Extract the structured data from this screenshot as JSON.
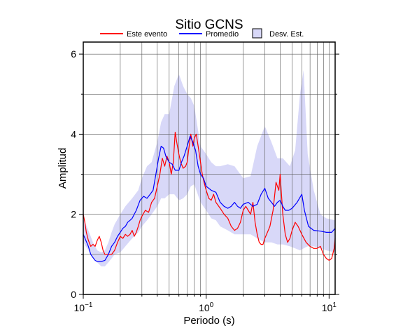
{
  "chart_data": {
    "type": "line",
    "title": "Sitio GCNS",
    "xlabel": "Periodo (s)",
    "ylabel": "Amplitud",
    "xscale": "log",
    "xlim": [
      0.1,
      11.2
    ],
    "ylim": [
      0,
      6.3
    ],
    "grid": true,
    "legend_position": "top",
    "x_tick_labels": [
      {
        "value": 0.1,
        "base": "10",
        "exp": "−1"
      },
      {
        "value": 1,
        "base": "10",
        "exp": "0"
      },
      {
        "value": 10,
        "base": "10",
        "exp": "1"
      }
    ],
    "y_tick_labels": [
      {
        "value": 0,
        "label": "0"
      },
      {
        "value": 2,
        "label": "2"
      },
      {
        "value": 4,
        "label": "4"
      },
      {
        "value": 6,
        "label": "6"
      }
    ],
    "y_minor_ticks": [
      1,
      3,
      5
    ],
    "legend": [
      {
        "name": "Este evento",
        "kind": "line",
        "color": "#ff0000"
      },
      {
        "name": "Promedio",
        "kind": "line",
        "color": "#0000ff"
      },
      {
        "name": "Desv. Est.",
        "kind": "box",
        "color": "#d8d8f8"
      }
    ],
    "series": [
      {
        "name": "Este evento",
        "color": "#ff0000",
        "points": [
          [
            0.1,
            2.0
          ],
          [
            0.103,
            1.8
          ],
          [
            0.106,
            1.55
          ],
          [
            0.11,
            1.35
          ],
          [
            0.115,
            1.2
          ],
          [
            0.12,
            1.25
          ],
          [
            0.125,
            1.2
          ],
          [
            0.13,
            1.35
          ],
          [
            0.135,
            1.45
          ],
          [
            0.14,
            1.3
          ],
          [
            0.145,
            1.1
          ],
          [
            0.15,
            1.0
          ],
          [
            0.16,
            1.0
          ],
          [
            0.17,
            1.0
          ],
          [
            0.18,
            1.1
          ],
          [
            0.19,
            1.3
          ],
          [
            0.2,
            1.45
          ],
          [
            0.21,
            1.4
          ],
          [
            0.22,
            1.5
          ],
          [
            0.23,
            1.45
          ],
          [
            0.24,
            1.5
          ],
          [
            0.25,
            1.6
          ],
          [
            0.26,
            1.45
          ],
          [
            0.27,
            1.55
          ],
          [
            0.28,
            1.7
          ],
          [
            0.29,
            1.85
          ],
          [
            0.3,
            1.95
          ],
          [
            0.32,
            2.1
          ],
          [
            0.34,
            2.05
          ],
          [
            0.36,
            2.3
          ],
          [
            0.38,
            2.4
          ],
          [
            0.4,
            2.7
          ],
          [
            0.42,
            3.0
          ],
          [
            0.44,
            3.4
          ],
          [
            0.46,
            3.2
          ],
          [
            0.48,
            3.45
          ],
          [
            0.5,
            3.3
          ],
          [
            0.52,
            3.0
          ],
          [
            0.54,
            3.3
          ],
          [
            0.56,
            4.05
          ],
          [
            0.58,
            3.75
          ],
          [
            0.6,
            3.5
          ],
          [
            0.62,
            3.3
          ],
          [
            0.65,
            3.15
          ],
          [
            0.68,
            3.2
          ],
          [
            0.7,
            3.3
          ],
          [
            0.72,
            3.6
          ],
          [
            0.75,
            4.0
          ],
          [
            0.78,
            3.7
          ],
          [
            0.8,
            3.9
          ],
          [
            0.83,
            4.0
          ],
          [
            0.86,
            3.7
          ],
          [
            0.9,
            3.3
          ],
          [
            0.93,
            3.0
          ],
          [
            0.96,
            2.8
          ],
          [
            1.0,
            2.6
          ],
          [
            1.05,
            2.4
          ],
          [
            1.1,
            2.35
          ],
          [
            1.15,
            2.5
          ],
          [
            1.2,
            2.3
          ],
          [
            1.3,
            2.15
          ],
          [
            1.4,
            2.0
          ],
          [
            1.5,
            1.9
          ],
          [
            1.6,
            1.7
          ],
          [
            1.7,
            1.6
          ],
          [
            1.8,
            1.65
          ],
          [
            1.9,
            1.8
          ],
          [
            2.0,
            2.1
          ],
          [
            2.1,
            2.2
          ],
          [
            2.2,
            2.1
          ],
          [
            2.3,
            2.0
          ],
          [
            2.4,
            2.3
          ],
          [
            2.5,
            1.8
          ],
          [
            2.6,
            1.5
          ],
          [
            2.7,
            1.3
          ],
          [
            2.8,
            1.25
          ],
          [
            2.9,
            1.25
          ],
          [
            3.0,
            1.4
          ],
          [
            3.1,
            1.5
          ],
          [
            3.3,
            1.7
          ],
          [
            3.5,
            2.1
          ],
          [
            3.7,
            2.8
          ],
          [
            3.9,
            2.6
          ],
          [
            4.0,
            3.0
          ],
          [
            4.2,
            2.0
          ],
          [
            4.4,
            1.5
          ],
          [
            4.6,
            1.3
          ],
          [
            4.8,
            1.4
          ],
          [
            5.0,
            1.6
          ],
          [
            5.3,
            1.8
          ],
          [
            5.6,
            1.7
          ],
          [
            6.0,
            1.5
          ],
          [
            6.5,
            1.3
          ],
          [
            7.0,
            1.2
          ],
          [
            7.5,
            1.15
          ],
          [
            8.0,
            1.15
          ],
          [
            8.5,
            1.2
          ],
          [
            9.0,
            1.0
          ],
          [
            9.5,
            0.9
          ],
          [
            10.0,
            0.85
          ],
          [
            10.5,
            0.9
          ],
          [
            11.0,
            1.15
          ],
          [
            11.2,
            1.4
          ]
        ]
      },
      {
        "name": "Promedio",
        "color": "#0000ff",
        "points": [
          [
            0.1,
            1.5
          ],
          [
            0.105,
            1.35
          ],
          [
            0.11,
            1.2
          ],
          [
            0.115,
            1.0
          ],
          [
            0.12,
            0.92
          ],
          [
            0.125,
            0.85
          ],
          [
            0.13,
            0.82
          ],
          [
            0.14,
            0.82
          ],
          [
            0.15,
            0.85
          ],
          [
            0.16,
            1.0
          ],
          [
            0.17,
            1.2
          ],
          [
            0.18,
            1.3
          ],
          [
            0.19,
            1.45
          ],
          [
            0.2,
            1.55
          ],
          [
            0.21,
            1.65
          ],
          [
            0.22,
            1.7
          ],
          [
            0.23,
            1.8
          ],
          [
            0.24,
            1.85
          ],
          [
            0.25,
            1.9
          ],
          [
            0.27,
            2.1
          ],
          [
            0.29,
            2.35
          ],
          [
            0.31,
            2.45
          ],
          [
            0.33,
            2.4
          ],
          [
            0.35,
            2.5
          ],
          [
            0.37,
            2.6
          ],
          [
            0.39,
            3.0
          ],
          [
            0.41,
            3.4
          ],
          [
            0.43,
            3.7
          ],
          [
            0.45,
            3.65
          ],
          [
            0.47,
            3.45
          ],
          [
            0.5,
            3.3
          ],
          [
            0.53,
            3.25
          ],
          [
            0.56,
            3.1
          ],
          [
            0.6,
            3.1
          ],
          [
            0.63,
            3.3
          ],
          [
            0.66,
            3.45
          ],
          [
            0.7,
            3.7
          ],
          [
            0.74,
            3.95
          ],
          [
            0.78,
            3.8
          ],
          [
            0.82,
            3.6
          ],
          [
            0.86,
            3.2
          ],
          [
            0.9,
            3.0
          ],
          [
            0.95,
            2.9
          ],
          [
            1.0,
            2.7
          ],
          [
            1.1,
            2.6
          ],
          [
            1.2,
            2.55
          ],
          [
            1.3,
            2.3
          ],
          [
            1.4,
            2.2
          ],
          [
            1.5,
            2.15
          ],
          [
            1.6,
            2.2
          ],
          [
            1.7,
            2.3
          ],
          [
            1.8,
            2.2
          ],
          [
            1.9,
            2.15
          ],
          [
            2.0,
            2.25
          ],
          [
            2.2,
            2.3
          ],
          [
            2.4,
            2.2
          ],
          [
            2.6,
            2.25
          ],
          [
            2.8,
            2.5
          ],
          [
            3.0,
            2.65
          ],
          [
            3.2,
            2.4
          ],
          [
            3.4,
            2.3
          ],
          [
            3.6,
            2.2
          ],
          [
            3.8,
            2.3
          ],
          [
            4.0,
            2.35
          ],
          [
            4.2,
            2.2
          ],
          [
            4.4,
            2.1
          ],
          [
            4.7,
            2.1
          ],
          [
            5.0,
            2.15
          ],
          [
            5.5,
            2.3
          ],
          [
            6.0,
            2.5
          ],
          [
            6.3,
            2.1
          ],
          [
            6.8,
            1.7
          ],
          [
            7.5,
            1.6
          ],
          [
            8.5,
            1.58
          ],
          [
            9.5,
            1.55
          ],
          [
            10.5,
            1.55
          ],
          [
            11.2,
            1.65
          ]
        ]
      }
    ],
    "std_band": {
      "name": "Desv. Est.",
      "color": "#d8d8f8",
      "x": [
        0.1,
        0.11,
        0.12,
        0.13,
        0.14,
        0.15,
        0.16,
        0.17,
        0.18,
        0.2,
        0.22,
        0.25,
        0.28,
        0.3,
        0.33,
        0.36,
        0.4,
        0.43,
        0.46,
        0.5,
        0.55,
        0.6,
        0.65,
        0.7,
        0.75,
        0.8,
        0.9,
        1.0,
        1.1,
        1.2,
        1.3,
        1.5,
        1.7,
        2.0,
        2.3,
        2.6,
        3.0,
        3.4,
        3.8,
        4.2,
        4.8,
        5.3,
        5.8,
        6.2,
        6.7,
        7.5,
        8.5,
        9.5,
        11.2
      ],
      "upper": [
        1.9,
        1.6,
        1.3,
        1.1,
        1.05,
        1.1,
        1.3,
        1.55,
        1.75,
        2.0,
        2.2,
        2.4,
        2.6,
        2.9,
        3.2,
        3.3,
        3.8,
        4.3,
        4.5,
        4.5,
        5.2,
        5.5,
        5.2,
        5.0,
        4.9,
        4.7,
        3.7,
        3.5,
        3.3,
        3.2,
        3.2,
        3.25,
        3.2,
        2.9,
        2.95,
        3.7,
        4.2,
        3.8,
        3.4,
        3.4,
        3.2,
        3.6,
        5.0,
        5.6,
        3.5,
        2.6,
        2.0,
        1.9,
        1.85
      ],
      "lower": [
        1.3,
        1.1,
        0.95,
        0.8,
        0.7,
        0.7,
        0.8,
        0.9,
        1.0,
        1.05,
        1.2,
        1.4,
        1.55,
        1.7,
        1.85,
        2.0,
        2.2,
        2.4,
        2.4,
        2.5,
        2.5,
        2.35,
        2.4,
        2.5,
        2.7,
        2.75,
        2.3,
        2.1,
        1.9,
        1.85,
        1.7,
        1.6,
        1.5,
        1.5,
        1.5,
        1.4,
        1.3,
        1.3,
        1.25,
        1.25,
        1.2,
        1.15,
        1.1,
        1.15,
        1.2,
        1.2,
        1.15,
        1.1,
        1.05
      ]
    }
  }
}
